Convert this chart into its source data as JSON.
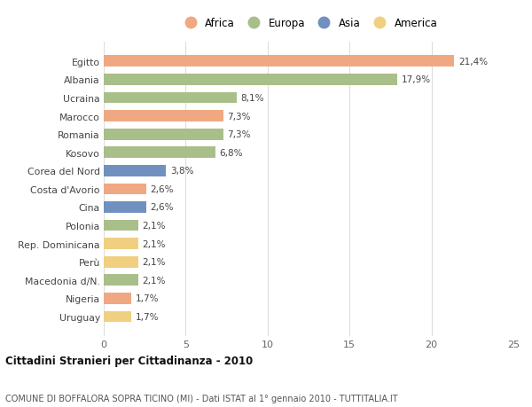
{
  "categories": [
    "Egitto",
    "Albania",
    "Ucraina",
    "Marocco",
    "Romania",
    "Kosovo",
    "Corea del Nord",
    "Costa d'Avorio",
    "Cina",
    "Polonia",
    "Rep. Dominicana",
    "Perù",
    "Macedonia d/N.",
    "Nigeria",
    "Uruguay"
  ],
  "values": [
    21.4,
    17.9,
    8.1,
    7.3,
    7.3,
    6.8,
    3.8,
    2.6,
    2.6,
    2.1,
    2.1,
    2.1,
    2.1,
    1.7,
    1.7
  ],
  "labels": [
    "21,4%",
    "17,9%",
    "8,1%",
    "7,3%",
    "7,3%",
    "6,8%",
    "3,8%",
    "2,6%",
    "2,6%",
    "2,1%",
    "2,1%",
    "2,1%",
    "2,1%",
    "1,7%",
    "1,7%"
  ],
  "continents": [
    "Africa",
    "Europa",
    "Europa",
    "Africa",
    "Europa",
    "Europa",
    "Asia",
    "Africa",
    "Asia",
    "Europa",
    "America",
    "America",
    "Europa",
    "Africa",
    "America"
  ],
  "colors": {
    "Africa": "#F0A882",
    "Europa": "#A8BF8A",
    "Asia": "#7090C0",
    "America": "#F0D080"
  },
  "legend_order": [
    "Africa",
    "Europa",
    "Asia",
    "America"
  ],
  "title": "Cittadini Stranieri per Cittadinanza - 2010",
  "subtitle": "COMUNE DI BOFFALORA SOPRA TICINO (MI) - Dati ISTAT al 1° gennaio 2010 - TUTTITALIA.IT",
  "xlim": [
    0,
    25
  ],
  "xticks": [
    0,
    5,
    10,
    15,
    20,
    25
  ],
  "background_color": "#ffffff",
  "bar_height": 0.62,
  "grid_color": "#dddddd",
  "label_fontsize": 7.5,
  "ytick_fontsize": 7.8,
  "xtick_fontsize": 8.0
}
